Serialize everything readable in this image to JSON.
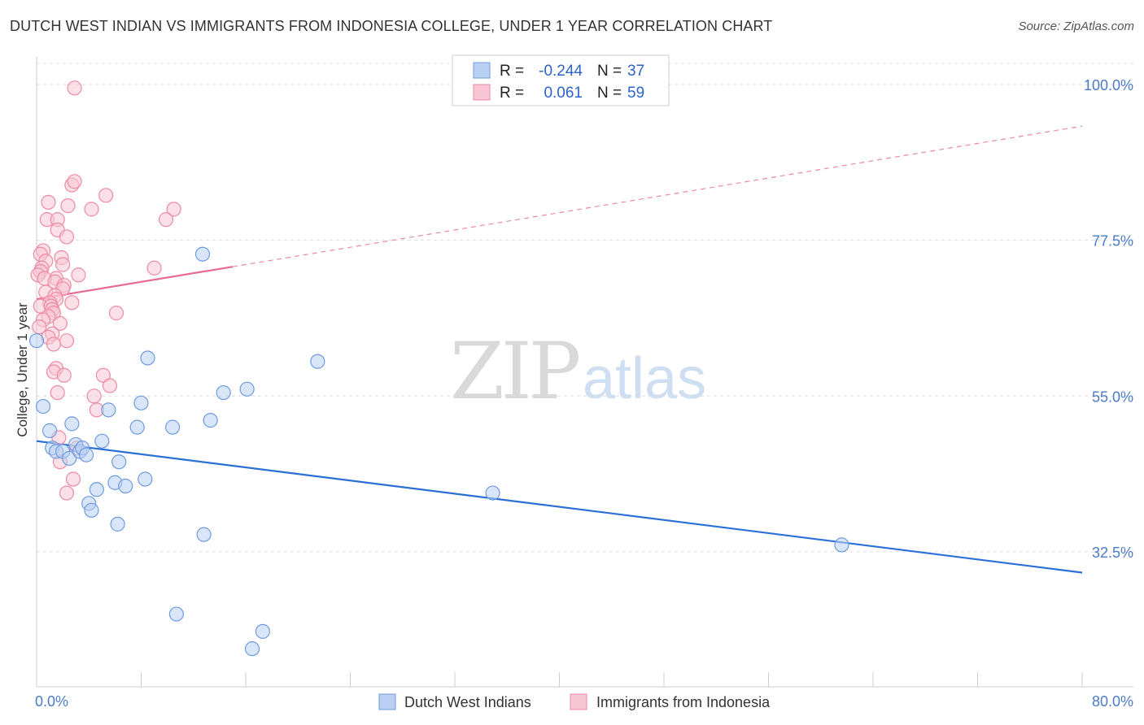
{
  "title": "DUTCH WEST INDIAN VS IMMIGRANTS FROM INDONESIA COLLEGE, UNDER 1 YEAR CORRELATION CHART",
  "source": "Source: ZipAtlas.com",
  "watermark": {
    "zip": "ZIP",
    "atlas": "atlas"
  },
  "chart_data": {
    "type": "scatter",
    "title": "DUTCH WEST INDIAN VS IMMIGRANTS FROM INDONESIA COLLEGE, UNDER 1 YEAR CORRELATION CHART",
    "xlabel": "",
    "ylabel": "College, Under 1 year",
    "xlim": [
      0,
      80
    ],
    "ylim": [
      13,
      104
    ],
    "x_tick_labels": [
      "0.0%",
      "80.0%"
    ],
    "y_ticks": [
      {
        "value": 100.0,
        "label": "100.0%"
      },
      {
        "value": 77.5,
        "label": "77.5%"
      },
      {
        "value": 55.0,
        "label": "55.0%"
      },
      {
        "value": 32.5,
        "label": "32.5%"
      }
    ],
    "grid": "horizontal dashed",
    "legend": {
      "position": "top-center",
      "entries": [
        {
          "r_label": "R =",
          "r_value": "-0.244",
          "n_label": "N =",
          "n_value": "37"
        },
        {
          "r_label": "R =",
          "r_value": "0.061",
          "n_label": "N =",
          "n_value": "59"
        }
      ]
    },
    "series": [
      {
        "name": "Dutch West Indians",
        "color": "#6e9be0",
        "fill": "#b9d0f2",
        "trend": {
          "x0": 0,
          "y0": 48.5,
          "x1": 80,
          "y1": 29.5,
          "solid_to": 80
        },
        "points": [
          [
            0.0,
            63.0
          ],
          [
            0.5,
            53.5
          ],
          [
            1.0,
            50.0
          ],
          [
            1.2,
            47.5
          ],
          [
            1.5,
            47.0
          ],
          [
            2.0,
            47.0
          ],
          [
            2.5,
            46.0
          ],
          [
            2.7,
            51.0
          ],
          [
            3.0,
            48.0
          ],
          [
            3.3,
            47.0
          ],
          [
            3.5,
            47.5
          ],
          [
            3.8,
            46.5
          ],
          [
            4.0,
            39.5
          ],
          [
            4.2,
            38.5
          ],
          [
            4.6,
            41.5
          ],
          [
            5.0,
            48.5
          ],
          [
            5.5,
            53.0
          ],
          [
            6.0,
            42.5
          ],
          [
            6.2,
            36.5
          ],
          [
            6.3,
            45.5
          ],
          [
            6.8,
            42.0
          ],
          [
            7.7,
            50.5
          ],
          [
            8.0,
            54.0
          ],
          [
            8.3,
            43.0
          ],
          [
            8.5,
            60.5
          ],
          [
            10.4,
            50.5
          ],
          [
            10.7,
            23.5
          ],
          [
            12.7,
            75.5
          ],
          [
            12.8,
            35.0
          ],
          [
            13.3,
            51.5
          ],
          [
            14.3,
            55.5
          ],
          [
            16.1,
            56.0
          ],
          [
            16.5,
            18.5
          ],
          [
            17.3,
            21.0
          ],
          [
            21.5,
            60.0
          ],
          [
            34.9,
            41.0
          ],
          [
            61.6,
            33.5
          ]
        ]
      },
      {
        "name": "Immigrants from Indonesia",
        "color": "#ee8aa6",
        "fill": "#f7c6d4",
        "trend": {
          "x0": 0,
          "y0": 69.0,
          "x1": 80,
          "y1": 94.0,
          "solid_to": 15
        },
        "points": [
          [
            2.9,
            99.5
          ],
          [
            2.7,
            85.5
          ],
          [
            2.9,
            86.0
          ],
          [
            5.3,
            84.0
          ],
          [
            0.9,
            83.0
          ],
          [
            2.4,
            82.5
          ],
          [
            4.2,
            82.0
          ],
          [
            10.5,
            82.0
          ],
          [
            0.8,
            80.5
          ],
          [
            1.6,
            80.5
          ],
          [
            9.9,
            80.5
          ],
          [
            1.6,
            79.0
          ],
          [
            2.3,
            78.0
          ],
          [
            0.5,
            76.0
          ],
          [
            0.3,
            75.5
          ],
          [
            1.9,
            75.0
          ],
          [
            0.7,
            74.5
          ],
          [
            2.0,
            74.0
          ],
          [
            0.4,
            73.5
          ],
          [
            0.3,
            73.0
          ],
          [
            9.0,
            73.5
          ],
          [
            0.1,
            72.5
          ],
          [
            1.5,
            72.0
          ],
          [
            3.2,
            72.5
          ],
          [
            0.6,
            72.0
          ],
          [
            1.4,
            71.5
          ],
          [
            2.1,
            71.0
          ],
          [
            2.0,
            70.5
          ],
          [
            0.7,
            70.0
          ],
          [
            1.4,
            69.5
          ],
          [
            1.5,
            69.0
          ],
          [
            1.0,
            68.5
          ],
          [
            2.7,
            68.5
          ],
          [
            0.3,
            68.0
          ],
          [
            1.1,
            68.0
          ],
          [
            1.2,
            67.5
          ],
          [
            1.3,
            67.0
          ],
          [
            6.1,
            67.0
          ],
          [
            0.9,
            66.5
          ],
          [
            0.5,
            66.0
          ],
          [
            1.8,
            65.5
          ],
          [
            0.2,
            65.0
          ],
          [
            1.2,
            64.0
          ],
          [
            0.9,
            63.5
          ],
          [
            2.3,
            63.0
          ],
          [
            1.3,
            62.5
          ],
          [
            1.5,
            59.0
          ],
          [
            1.3,
            58.5
          ],
          [
            2.1,
            58.0
          ],
          [
            5.1,
            58.0
          ],
          [
            5.6,
            56.5
          ],
          [
            1.6,
            55.5
          ],
          [
            4.4,
            55.0
          ],
          [
            4.6,
            53.0
          ],
          [
            1.7,
            49.0
          ],
          [
            3.1,
            47.5
          ],
          [
            1.8,
            45.5
          ],
          [
            2.8,
            43.0
          ],
          [
            2.3,
            41.0
          ]
        ]
      }
    ]
  }
}
